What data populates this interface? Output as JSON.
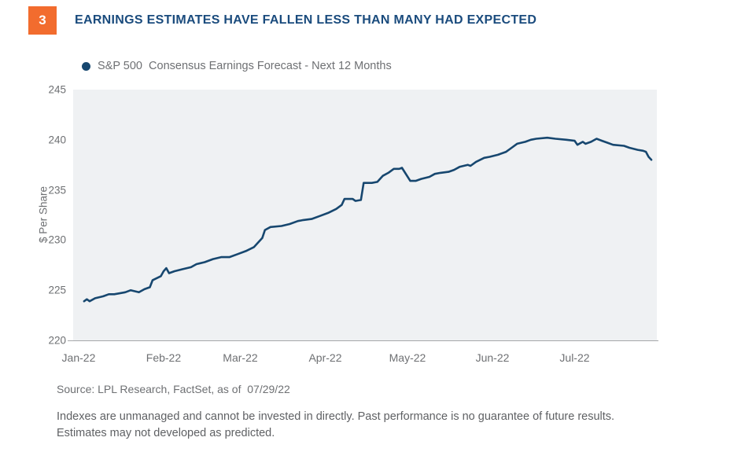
{
  "header": {
    "figure_number": "3",
    "title": "EARNINGS ESTIMATES HAVE FALLEN LESS THAN MANY HAD EXPECTED"
  },
  "legend": {
    "label": "S&P 500  Consensus Earnings Forecast - Next 12 Months"
  },
  "footer": {
    "source": "Source: LPL Research, FactSet, as of  07/29/22",
    "disclaimer_line1": "Indexes are unmanaged and cannot be invested in directly. Past performance is no guarantee of future results.",
    "disclaimer_line2": "Estimates may not developed as predicted."
  },
  "colors": {
    "accent_orange": "#F26C2E",
    "title_navy": "#1A4B7D",
    "line_navy": "#17476F",
    "plot_background": "#EFF1F3",
    "axis_text_gray": "#6E7073",
    "axis_line_gray": "#A6A8AA"
  },
  "chart_data": {
    "type": "line",
    "title": "S&P 500 Consensus Earnings Forecast - Next 12 Months",
    "xlabel": "",
    "ylabel": "$ Per Share",
    "ylim": [
      220,
      245
    ],
    "y_ticks": [
      245,
      240,
      235,
      230,
      225,
      220
    ],
    "x_ticks": [
      "Jan-22",
      "Feb-22",
      "Mar-22",
      "Apr-22",
      "May-22",
      "Jun-22",
      "Jul-22"
    ],
    "grid": false,
    "legend_position": "top-left",
    "series": [
      {
        "name": "S&P 500 Consensus Earnings Forecast - Next 12 Months",
        "color": "#17476F",
        "points": [
          [
            "Jan 3",
            223.9
          ],
          [
            "Jan 4",
            224.1
          ],
          [
            "Jan 5",
            223.9
          ],
          [
            "Jan 7",
            224.2
          ],
          [
            "Jan 10",
            224.4
          ],
          [
            "Jan 12",
            224.6
          ],
          [
            "Jan 14",
            224.6
          ],
          [
            "Jan 18",
            224.8
          ],
          [
            "Jan 20",
            225.0
          ],
          [
            "Jan 23",
            224.8
          ],
          [
            "Jan 25",
            225.1
          ],
          [
            "Jan 27",
            225.3
          ],
          [
            "Jan 28",
            226.0
          ],
          [
            "Jan 31",
            226.4
          ],
          [
            "Feb 1",
            226.9
          ],
          [
            "Feb 2",
            227.2
          ],
          [
            "Feb 3",
            226.7
          ],
          [
            "Feb 5",
            226.9
          ],
          [
            "Feb 8",
            227.1
          ],
          [
            "Feb 11",
            227.3
          ],
          [
            "Feb 13",
            227.6
          ],
          [
            "Feb 16",
            227.8
          ],
          [
            "Feb 19",
            228.1
          ],
          [
            "Feb 22",
            228.3
          ],
          [
            "Feb 25",
            228.3
          ],
          [
            "Feb 28",
            228.6
          ],
          [
            "Mar 3",
            228.9
          ],
          [
            "Mar 6",
            229.3
          ],
          [
            "Mar 9",
            230.2
          ],
          [
            "Mar 10",
            231.0
          ],
          [
            "Mar 12",
            231.3
          ],
          [
            "Mar 16",
            231.4
          ],
          [
            "Mar 19",
            231.6
          ],
          [
            "Mar 22",
            231.9
          ],
          [
            "Mar 24",
            232.0
          ],
          [
            "Mar 27",
            232.1
          ],
          [
            "Mar 30",
            232.4
          ],
          [
            "Apr 2",
            232.7
          ],
          [
            "Apr 5",
            233.1
          ],
          [
            "Apr 7",
            233.5
          ],
          [
            "Apr 8",
            234.1
          ],
          [
            "Apr 11",
            234.1
          ],
          [
            "Apr 12",
            233.9
          ],
          [
            "Apr 14",
            234.0
          ],
          [
            "Apr 15",
            235.7
          ],
          [
            "Apr 18",
            235.7
          ],
          [
            "Apr 20",
            235.8
          ],
          [
            "Apr 22",
            236.4
          ],
          [
            "Apr 24",
            236.7
          ],
          [
            "Apr 26",
            237.1
          ],
          [
            "Apr 28",
            237.1
          ],
          [
            "Apr 29",
            237.2
          ],
          [
            "May 2",
            235.9
          ],
          [
            "May 4",
            235.9
          ],
          [
            "May 6",
            236.1
          ],
          [
            "May 9",
            236.3
          ],
          [
            "May 11",
            236.6
          ],
          [
            "May 13",
            236.7
          ],
          [
            "May 16",
            236.8
          ],
          [
            "May 18",
            237.0
          ],
          [
            "May 20",
            237.3
          ],
          [
            "May 23",
            237.5
          ],
          [
            "May 24",
            237.4
          ],
          [
            "May 26",
            237.8
          ],
          [
            "May 29",
            238.2
          ],
          [
            "May 31",
            238.3
          ],
          [
            "Jun 3",
            238.5
          ],
          [
            "Jun 6",
            238.8
          ],
          [
            "Jun 8",
            239.2
          ],
          [
            "Jun 10",
            239.6
          ],
          [
            "Jun 13",
            239.8
          ],
          [
            "Jun 15",
            240.0
          ],
          [
            "Jun 17",
            240.1
          ],
          [
            "Jun 21",
            240.2
          ],
          [
            "Jun 24",
            240.1
          ],
          [
            "Jun 28",
            240.0
          ],
          [
            "Jul 1",
            239.9
          ],
          [
            "Jul 2",
            239.5
          ],
          [
            "Jul 4",
            239.8
          ],
          [
            "Jul 5",
            239.6
          ],
          [
            "Jul 7",
            239.8
          ],
          [
            "Jul 9",
            240.1
          ],
          [
            "Jul 11",
            239.9
          ],
          [
            "Jul 13",
            239.7
          ],
          [
            "Jul 15",
            239.5
          ],
          [
            "Jul 19",
            239.4
          ],
          [
            "Jul 21",
            239.2
          ],
          [
            "Jul 24",
            239.0
          ],
          [
            "Jul 26",
            238.9
          ],
          [
            "Jul 27",
            238.8
          ],
          [
            "Jul 28",
            238.3
          ],
          [
            "Jul 29",
            238.0
          ]
        ]
      }
    ]
  }
}
